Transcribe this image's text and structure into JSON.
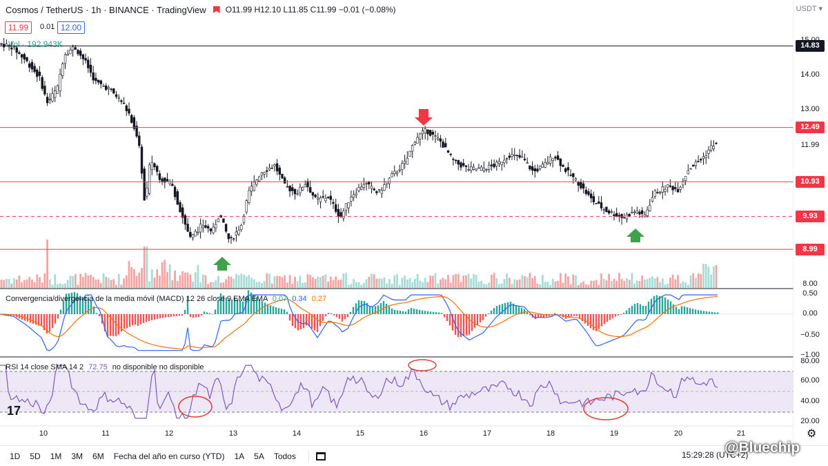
{
  "header": {
    "symbol": "Cosmos / TetherUS · 1h · BINANCE · TradingView",
    "ohlc": "O11.99 H12.10 L11.85 C11.99 −0.01 (−0.08%)"
  },
  "quote": {
    "sell": "11.99",
    "spread": "0.01",
    "buy": "12.00"
  },
  "volume_label": "Vol · 192.943K",
  "currency_tag": "USDT ▾",
  "levels": [
    {
      "value": "14.83",
      "price": 14.83,
      "color": "#131722",
      "style": "solid"
    },
    {
      "value": "12.49",
      "price": 12.49,
      "color": "#f23645",
      "style": "solid"
    },
    {
      "value": "10.93",
      "price": 10.93,
      "color": "#f23645",
      "style": "solid"
    },
    {
      "value": "9.93",
      "price": 9.93,
      "color": "#f23645",
      "style": "dashed"
    },
    {
      "value": "8.99",
      "price": 8.99,
      "color": "#f23645",
      "style": "solid"
    }
  ],
  "price_axis": [
    "15.00",
    "14.00",
    "13.00",
    "11.99",
    "8.00"
  ],
  "macd": {
    "label": "Convergencia/divergencia de la media móvil (MACD) 12 26 close 9 EMA EMA",
    "hist": "0.07",
    "macd_value": "0.34",
    "signal_value": "0.27",
    "axis": [
      "0.50",
      "0.00",
      "−0.50",
      "−1.00"
    ]
  },
  "rsi": {
    "label": "RSI 14 close SMA 14 2",
    "value": "72.75",
    "extra": "no disponible  no disponible",
    "axis": [
      "80.00",
      "60.00",
      "40.00",
      "20.00"
    ]
  },
  "time_axis": [
    "10",
    "11",
    "12",
    "13",
    "14",
    "15",
    "16",
    "17",
    "18",
    "19",
    "20",
    "21"
  ],
  "ranges": [
    "1D",
    "5D",
    "1M",
    "3M",
    "6M",
    "Fecha del año en curso (YTD)",
    "1A",
    "5A",
    "Todos"
  ],
  "clock": "15:29:28 (UTC+2)",
  "watermark": "@Bluechip",
  "tv_logo": "17",
  "icons": {
    "gear": "gear-icon",
    "calendar": "calendar-icon",
    "bookmark": "bookmark-icon"
  },
  "colors": {
    "up": "#26a69a",
    "down": "#ef5350",
    "arrow_down": "#f23645",
    "arrow_up": "#26a640",
    "macd": "#2962ff",
    "signal": "#ff6d00",
    "rsi": "#7e57c2",
    "rsi_band": "#ede7f6",
    "annotation": "#e53935"
  }
}
